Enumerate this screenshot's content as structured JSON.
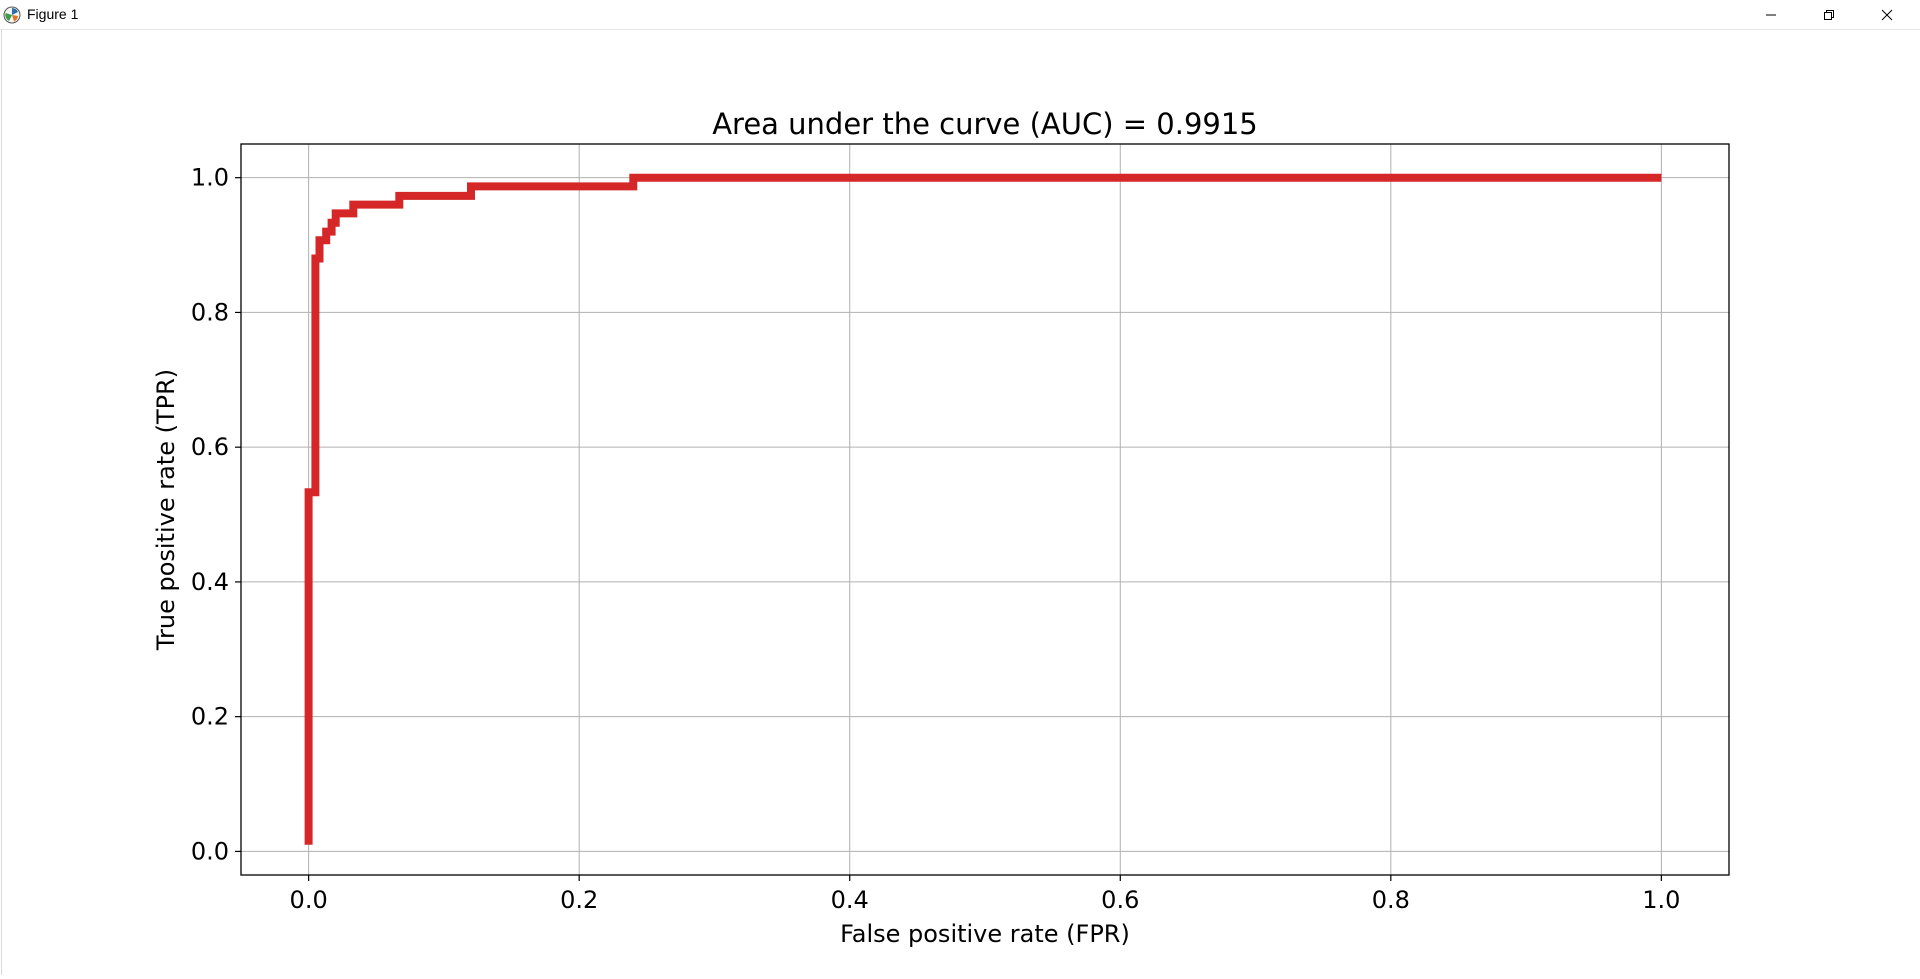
{
  "window": {
    "title": "Figure 1",
    "icon": "matplotlib-icon",
    "controls": [
      "minimize-icon",
      "restore-icon",
      "close-icon"
    ]
  },
  "chart_data": {
    "type": "line",
    "title": "Area under the curve (AUC) = 0.9915",
    "xlabel": "False positive rate (FPR)",
    "ylabel": "True positive rate (TPR)",
    "xlim": [
      -0.05,
      1.05
    ],
    "ylim": [
      -0.035,
      1.05
    ],
    "xticks": [
      0.0,
      0.2,
      0.4,
      0.6,
      0.8,
      1.0
    ],
    "xtick_labels": [
      "0.0",
      "0.2",
      "0.4",
      "0.6",
      "0.8",
      "1.0"
    ],
    "yticks": [
      0.0,
      0.2,
      0.4,
      0.6,
      0.8,
      1.0
    ],
    "ytick_labels": [
      "0.0",
      "0.2",
      "0.4",
      "0.6",
      "0.8",
      "1.0"
    ],
    "grid": true,
    "legend": "none",
    "series": [
      {
        "color": "#d62728",
        "x": [
          0.0,
          0.0,
          0.005,
          0.005,
          0.008,
          0.008,
          0.013,
          0.013,
          0.017,
          0.017,
          0.02,
          0.02,
          0.033,
          0.033,
          0.067,
          0.067,
          0.12,
          0.12,
          0.24,
          0.24,
          1.0
        ],
        "y": [
          0.01,
          0.533,
          0.533,
          0.88,
          0.88,
          0.907,
          0.907,
          0.92,
          0.92,
          0.933,
          0.933,
          0.947,
          0.947,
          0.96,
          0.96,
          0.973,
          0.973,
          0.987,
          0.987,
          1.0,
          1.0
        ]
      }
    ]
  }
}
